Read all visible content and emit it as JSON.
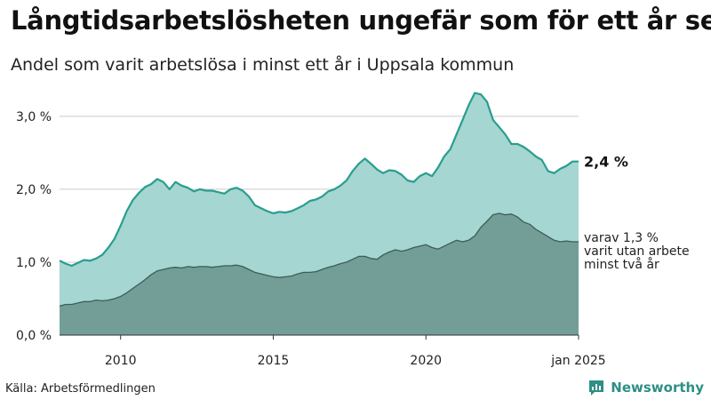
{
  "title": "Långtidsarbetslösheten ungefär som för ett år sen",
  "subtitle": "Andel som varit arbetslösa i minst ett år i Uppsala kommun",
  "source": "Källa: Arbetsförmedlingen",
  "brand": {
    "name": "Newsworthy",
    "icon": "bar-chart-speech-bubble-icon"
  },
  "colors": {
    "total_fill": "#a5d6d1",
    "total_line": "#2a9d8f",
    "long_fill": "#729e97",
    "long_line": "#3d5c57",
    "grid": "#cccccc",
    "brand": "#2e8f85"
  },
  "chart_data": {
    "type": "area",
    "title": "Långtidsarbetslösheten ungefär som för ett år sen",
    "subtitle": "Andel som varit arbetslösa i minst ett år i Uppsala kommun",
    "xlabel": "",
    "ylabel": "",
    "xlim": [
      2008.0,
      2025.0
    ],
    "ylim": [
      0,
      3.4
    ],
    "grid": true,
    "legend": "direct-labels-right",
    "x_ticks": [
      {
        "value": 2010,
        "label": "2010"
      },
      {
        "value": 2015,
        "label": "2015"
      },
      {
        "value": 2020,
        "label": "2020"
      },
      {
        "value": 2025,
        "label": "jan 2025"
      }
    ],
    "y_ticks": [
      {
        "value": 0,
        "label": "0,0 %"
      },
      {
        "value": 1,
        "label": "1,0 %"
      },
      {
        "value": 2,
        "label": "2,0 %"
      },
      {
        "value": 3,
        "label": "3,0 %"
      }
    ],
    "series": [
      {
        "name": "",
        "end_label": "2,4 %",
        "unit": "percent",
        "points": [
          [
            2008.0,
            1.02
          ],
          [
            2008.2,
            0.98
          ],
          [
            2008.4,
            0.95
          ],
          [
            2008.6,
            0.99
          ],
          [
            2008.8,
            1.03
          ],
          [
            2009.0,
            1.02
          ],
          [
            2009.2,
            1.05
          ],
          [
            2009.4,
            1.1
          ],
          [
            2009.6,
            1.2
          ],
          [
            2009.8,
            1.32
          ],
          [
            2010.0,
            1.5
          ],
          [
            2010.2,
            1.7
          ],
          [
            2010.4,
            1.85
          ],
          [
            2010.6,
            1.95
          ],
          [
            2010.8,
            2.03
          ],
          [
            2011.0,
            2.07
          ],
          [
            2011.2,
            2.14
          ],
          [
            2011.4,
            2.1
          ],
          [
            2011.6,
            2.0
          ],
          [
            2011.8,
            2.1
          ],
          [
            2012.0,
            2.05
          ],
          [
            2012.2,
            2.02
          ],
          [
            2012.4,
            1.97
          ],
          [
            2012.6,
            2.0
          ],
          [
            2012.8,
            1.98
          ],
          [
            2013.0,
            1.98
          ],
          [
            2013.2,
            1.96
          ],
          [
            2013.4,
            1.94
          ],
          [
            2013.6,
            2.0
          ],
          [
            2013.8,
            2.02
          ],
          [
            2014.0,
            1.98
          ],
          [
            2014.2,
            1.9
          ],
          [
            2014.4,
            1.78
          ],
          [
            2014.6,
            1.74
          ],
          [
            2014.8,
            1.7
          ],
          [
            2015.0,
            1.67
          ],
          [
            2015.2,
            1.69
          ],
          [
            2015.4,
            1.68
          ],
          [
            2015.6,
            1.7
          ],
          [
            2015.8,
            1.74
          ],
          [
            2016.0,
            1.78
          ],
          [
            2016.2,
            1.84
          ],
          [
            2016.4,
            1.86
          ],
          [
            2016.6,
            1.9
          ],
          [
            2016.8,
            1.97
          ],
          [
            2017.0,
            2.0
          ],
          [
            2017.2,
            2.05
          ],
          [
            2017.4,
            2.12
          ],
          [
            2017.6,
            2.25
          ],
          [
            2017.8,
            2.35
          ],
          [
            2018.0,
            2.42
          ],
          [
            2018.2,
            2.35
          ],
          [
            2018.4,
            2.27
          ],
          [
            2018.6,
            2.22
          ],
          [
            2018.8,
            2.26
          ],
          [
            2019.0,
            2.25
          ],
          [
            2019.2,
            2.2
          ],
          [
            2019.4,
            2.12
          ],
          [
            2019.6,
            2.1
          ],
          [
            2019.8,
            2.18
          ],
          [
            2020.0,
            2.22
          ],
          [
            2020.2,
            2.18
          ],
          [
            2020.4,
            2.3
          ],
          [
            2020.6,
            2.45
          ],
          [
            2020.8,
            2.55
          ],
          [
            2021.0,
            2.75
          ],
          [
            2021.2,
            2.95
          ],
          [
            2021.4,
            3.15
          ],
          [
            2021.6,
            3.32
          ],
          [
            2021.8,
            3.3
          ],
          [
            2022.0,
            3.2
          ],
          [
            2022.2,
            2.95
          ],
          [
            2022.4,
            2.85
          ],
          [
            2022.6,
            2.75
          ],
          [
            2022.8,
            2.62
          ],
          [
            2023.0,
            2.62
          ],
          [
            2023.2,
            2.58
          ],
          [
            2023.4,
            2.52
          ],
          [
            2023.6,
            2.45
          ],
          [
            2023.8,
            2.4
          ],
          [
            2024.0,
            2.25
          ],
          [
            2024.2,
            2.22
          ],
          [
            2024.4,
            2.28
          ],
          [
            2024.6,
            2.32
          ],
          [
            2024.8,
            2.38
          ],
          [
            2025.0,
            2.38
          ]
        ]
      },
      {
        "name": "varav 1,3 % varit utan arbete minst två år",
        "label_lines": [
          "varav 1,3 %",
          "varit utan arbete",
          "minst två år"
        ],
        "unit": "percent",
        "points": [
          [
            2008.0,
            0.4
          ],
          [
            2008.2,
            0.42
          ],
          [
            2008.4,
            0.42
          ],
          [
            2008.6,
            0.44
          ],
          [
            2008.8,
            0.46
          ],
          [
            2009.0,
            0.46
          ],
          [
            2009.2,
            0.48
          ],
          [
            2009.4,
            0.47
          ],
          [
            2009.6,
            0.48
          ],
          [
            2009.8,
            0.5
          ],
          [
            2010.0,
            0.53
          ],
          [
            2010.2,
            0.58
          ],
          [
            2010.4,
            0.64
          ],
          [
            2010.6,
            0.7
          ],
          [
            2010.8,
            0.76
          ],
          [
            2011.0,
            0.83
          ],
          [
            2011.2,
            0.88
          ],
          [
            2011.4,
            0.9
          ],
          [
            2011.6,
            0.92
          ],
          [
            2011.8,
            0.93
          ],
          [
            2012.0,
            0.92
          ],
          [
            2012.2,
            0.94
          ],
          [
            2012.4,
            0.93
          ],
          [
            2012.6,
            0.94
          ],
          [
            2012.8,
            0.94
          ],
          [
            2013.0,
            0.93
          ],
          [
            2013.2,
            0.94
          ],
          [
            2013.4,
            0.95
          ],
          [
            2013.6,
            0.95
          ],
          [
            2013.8,
            0.96
          ],
          [
            2014.0,
            0.94
          ],
          [
            2014.2,
            0.9
          ],
          [
            2014.4,
            0.86
          ],
          [
            2014.6,
            0.84
          ],
          [
            2014.8,
            0.82
          ],
          [
            2015.0,
            0.8
          ],
          [
            2015.2,
            0.79
          ],
          [
            2015.4,
            0.8
          ],
          [
            2015.6,
            0.81
          ],
          [
            2015.8,
            0.84
          ],
          [
            2016.0,
            0.86
          ],
          [
            2016.2,
            0.86
          ],
          [
            2016.4,
            0.87
          ],
          [
            2016.6,
            0.9
          ],
          [
            2016.8,
            0.93
          ],
          [
            2017.0,
            0.95
          ],
          [
            2017.2,
            0.98
          ],
          [
            2017.4,
            1.0
          ],
          [
            2017.6,
            1.04
          ],
          [
            2017.8,
            1.08
          ],
          [
            2018.0,
            1.08
          ],
          [
            2018.2,
            1.05
          ],
          [
            2018.4,
            1.04
          ],
          [
            2018.6,
            1.1
          ],
          [
            2018.8,
            1.14
          ],
          [
            2019.0,
            1.17
          ],
          [
            2019.2,
            1.15
          ],
          [
            2019.4,
            1.17
          ],
          [
            2019.6,
            1.2
          ],
          [
            2019.8,
            1.22
          ],
          [
            2020.0,
            1.24
          ],
          [
            2020.2,
            1.2
          ],
          [
            2020.4,
            1.18
          ],
          [
            2020.6,
            1.22
          ],
          [
            2020.8,
            1.26
          ],
          [
            2021.0,
            1.3
          ],
          [
            2021.2,
            1.28
          ],
          [
            2021.4,
            1.3
          ],
          [
            2021.6,
            1.36
          ],
          [
            2021.8,
            1.48
          ],
          [
            2022.0,
            1.56
          ],
          [
            2022.2,
            1.65
          ],
          [
            2022.4,
            1.67
          ],
          [
            2022.6,
            1.65
          ],
          [
            2022.8,
            1.66
          ],
          [
            2023.0,
            1.62
          ],
          [
            2023.2,
            1.55
          ],
          [
            2023.4,
            1.52
          ],
          [
            2023.6,
            1.45
          ],
          [
            2023.8,
            1.4
          ],
          [
            2024.0,
            1.35
          ],
          [
            2024.2,
            1.3
          ],
          [
            2024.4,
            1.28
          ],
          [
            2024.6,
            1.29
          ],
          [
            2024.8,
            1.28
          ],
          [
            2025.0,
            1.28
          ]
        ]
      }
    ]
  }
}
